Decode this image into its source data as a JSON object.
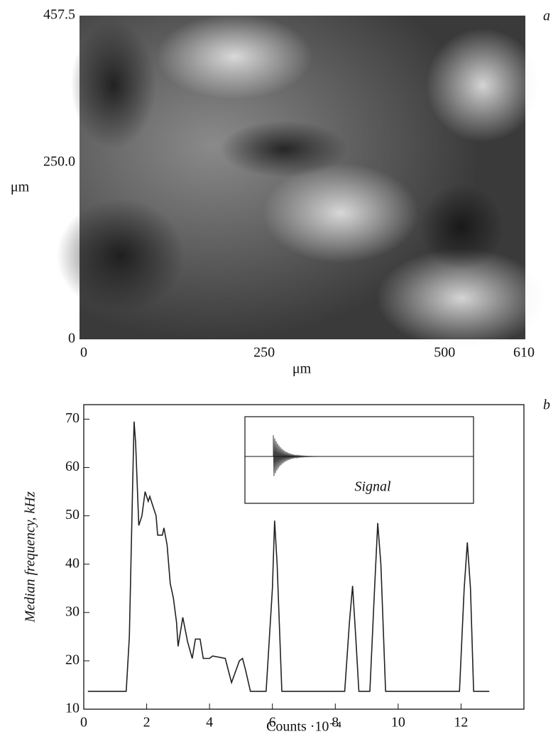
{
  "chart_data": [
    {
      "type": "image",
      "panel_label": "a",
      "x_label": "μm",
      "y_label": "μm",
      "xlim": [
        0,
        610
      ],
      "xticks": [
        0,
        250,
        500,
        610
      ],
      "ylim": [
        0,
        457.5
      ],
      "yticks": [
        0,
        {
          "value": 250,
          "label": "250.0"
        },
        457.5
      ]
    },
    {
      "type": "line",
      "panel_label": "b",
      "x_label": "Counts ·10⁻⁴",
      "y_label": "Median frequency, kHz",
      "inset_label": "Signal",
      "xlim": [
        0,
        14
      ],
      "xticks": [
        0,
        2,
        4,
        6,
        8,
        10,
        12
      ],
      "ylim": [
        10,
        73
      ],
      "yticks": [
        10,
        20,
        30,
        40,
        50,
        60,
        70
      ],
      "color": "#222222",
      "x": [
        0.13,
        1.35,
        1.45,
        1.55,
        1.6,
        1.65,
        1.75,
        1.85,
        1.95,
        2.05,
        2.1,
        2.2,
        2.3,
        2.35,
        2.5,
        2.55,
        2.65,
        2.75,
        2.85,
        2.95,
        3.0,
        3.15,
        3.3,
        3.45,
        3.55,
        3.7,
        3.8,
        4.0,
        4.1,
        4.5,
        4.7,
        4.95,
        5.05,
        5.15,
        5.3,
        5.8,
        6.0,
        6.07,
        6.15,
        6.3,
        8.3,
        8.45,
        8.55,
        8.65,
        8.75,
        9.1,
        9.25,
        9.35,
        9.45,
        9.6,
        11.95,
        12.1,
        12.2,
        12.3,
        12.4,
        12.9
      ],
      "values": [
        13.7,
        13.7,
        25,
        55,
        69.5,
        65,
        48,
        50,
        55,
        53,
        54,
        52,
        50,
        46,
        46,
        47.5,
        44,
        36,
        33,
        28,
        23,
        29,
        24,
        20.5,
        24.5,
        24.5,
        20.5,
        20.5,
        21,
        20.5,
        15.5,
        20,
        20.5,
        18,
        13.7,
        13.7,
        35,
        49,
        40,
        13.7,
        13.7,
        28,
        35.5,
        25,
        13.7,
        13.7,
        35,
        48.5,
        40,
        13.7,
        13.7,
        35,
        44.5,
        35,
        13.7,
        13.7
      ]
    }
  ]
}
